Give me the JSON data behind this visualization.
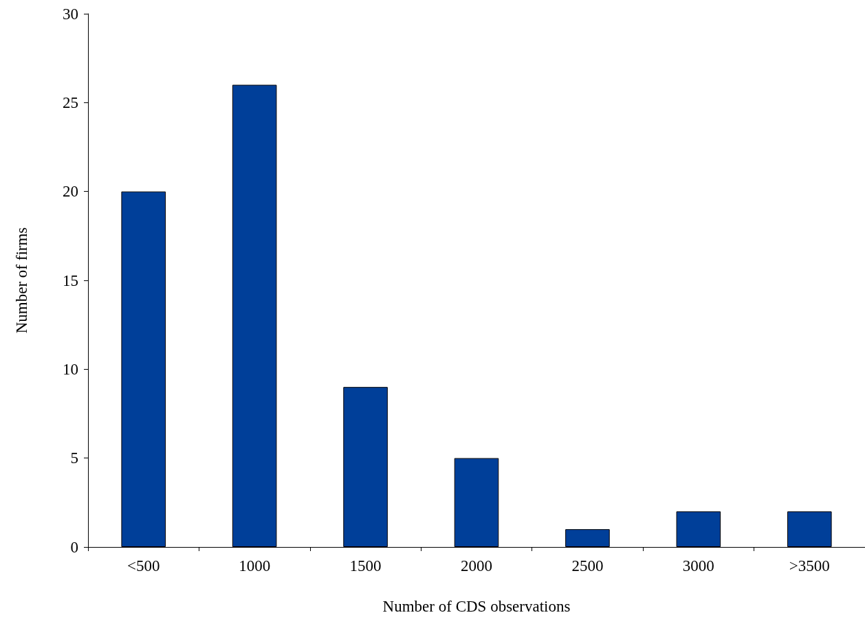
{
  "chart_data": {
    "type": "bar",
    "xlabel": "Number of CDS observations",
    "ylabel": "Number of firms",
    "categories": [
      "<500",
      "1000",
      "1500",
      "2000",
      "2500",
      "3000",
      ">3500"
    ],
    "values": [
      20,
      26,
      9,
      5,
      1,
      2,
      2
    ],
    "color": "#003f99",
    "ylim": [
      0,
      30
    ],
    "yticks": [
      0,
      5,
      10,
      15,
      20,
      25,
      30
    ],
    "grid": false
  }
}
